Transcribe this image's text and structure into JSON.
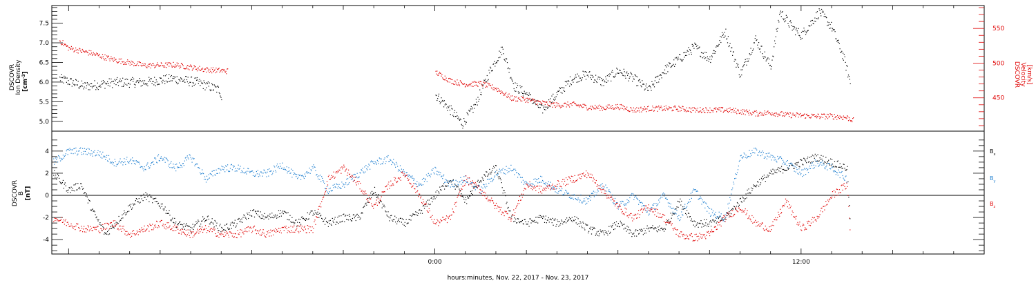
{
  "chart_data": [
    {
      "type": "scatter",
      "panel": "top",
      "ylabel_left": [
        "DSCOVR",
        "Ion Density",
        "[cm",
        "-3",
        "]"
      ],
      "ylabel_right": [
        "DSCOVR",
        "Velocity",
        "[km/s]"
      ],
      "ylim_left": [
        4.75,
        7.95
      ],
      "ylim_right": [
        402,
        583
      ],
      "yticks_left": [
        "5.0",
        "5.5",
        "6.0",
        "6.5",
        "7.0",
        "7.5"
      ],
      "yticks_right": [
        "450",
        "500",
        "550"
      ],
      "series": [
        {
          "color": "#000000",
          "axis": "left",
          "points": [
            [
              -12.3,
              6.1
            ],
            [
              -11.5,
              5.9
            ],
            [
              -10.5,
              6.0
            ],
            [
              -9.5,
              6.0
            ],
            [
              -8.6,
              6.1
            ],
            [
              -7.8,
              6.0
            ],
            [
              -7.05,
              5.8
            ],
            [
              -7.0,
              5.6
            ],
            [
              0.0,
              5.7
            ],
            [
              0.5,
              5.3
            ],
            [
              0.9,
              4.95
            ],
            [
              1.3,
              5.4
            ],
            [
              1.8,
              6.3
            ],
            [
              2.2,
              6.85
            ],
            [
              2.6,
              5.9
            ],
            [
              3.0,
              5.7
            ],
            [
              3.5,
              5.3
            ],
            [
              4.0,
              5.7
            ],
            [
              4.5,
              6.1
            ],
            [
              5.0,
              6.2
            ],
            [
              5.5,
              6.0
            ],
            [
              6.0,
              6.3
            ],
            [
              6.5,
              6.1
            ],
            [
              7.0,
              5.8
            ],
            [
              7.5,
              6.3
            ],
            [
              8.0,
              6.6
            ],
            [
              8.5,
              6.9
            ],
            [
              9.0,
              6.6
            ],
            [
              9.5,
              7.3
            ],
            [
              10.0,
              6.2
            ],
            [
              10.5,
              7.1
            ],
            [
              11.0,
              6.4
            ],
            [
              11.3,
              7.8
            ],
            [
              11.7,
              7.4
            ],
            [
              12.0,
              7.2
            ],
            [
              12.3,
              7.5
            ],
            [
              12.6,
              7.8
            ],
            [
              13.0,
              7.4
            ],
            [
              13.4,
              6.6
            ],
            [
              13.6,
              6.0
            ]
          ]
        },
        {
          "color": "#e00000",
          "axis": "right",
          "points": [
            [
              -12.3,
              533
            ],
            [
              -12.0,
              522
            ],
            [
              -11.3,
              515
            ],
            [
              -10.5,
              505
            ],
            [
              -9.5,
              497
            ],
            [
              -8.5,
              498
            ],
            [
              -7.5,
              491
            ],
            [
              -6.8,
              489
            ],
            [
              0.0,
              488
            ],
            [
              0.5,
              475
            ],
            [
              1.0,
              470
            ],
            [
              1.5,
              471
            ],
            [
              2.0,
              464
            ],
            [
              2.5,
              450
            ],
            [
              3.0,
              448
            ],
            [
              3.5,
              443
            ],
            [
              4.0,
              440
            ],
            [
              4.5,
              441
            ],
            [
              5.0,
              437
            ],
            [
              5.5,
              436
            ],
            [
              6.0,
              438
            ],
            [
              6.5,
              433
            ],
            [
              7.0,
              435
            ],
            [
              7.5,
              435
            ],
            [
              8.0,
              435
            ],
            [
              8.5,
              433
            ],
            [
              9.0,
              433
            ],
            [
              9.5,
              433
            ],
            [
              10.0,
              431
            ],
            [
              10.5,
              428
            ],
            [
              11.0,
              429
            ],
            [
              11.5,
              426
            ],
            [
              12.0,
              425
            ],
            [
              12.5,
              424
            ],
            [
              13.0,
              424
            ],
            [
              13.5,
              422
            ],
            [
              13.7,
              418
            ]
          ]
        }
      ]
    },
    {
      "type": "scatter",
      "panel": "bottom",
      "ylabel_left": [
        "DSCOVR",
        "B",
        "[nT]"
      ],
      "ylim": [
        -5.3,
        5.8
      ],
      "yticks": [
        "-4",
        "-2",
        "0",
        "2",
        "4"
      ],
      "legend": [
        "B",
        "B",
        "B"
      ],
      "legend_sub": [
        "x",
        "y",
        "z"
      ],
      "series": [
        {
          "name": "B",
          "sub": "x",
          "color": "#000000",
          "points": [
            [
              -12.5,
              2.0
            ],
            [
              -12.0,
              0.5
            ],
            [
              -11.6,
              1.0
            ],
            [
              -11.2,
              -1.5
            ],
            [
              -10.8,
              -3.5
            ],
            [
              -10.0,
              -1.0
            ],
            [
              -9.5,
              0.0
            ],
            [
              -8.9,
              -1.0
            ],
            [
              -8.5,
              -2.5
            ],
            [
              -8.0,
              -3.0
            ],
            [
              -7.5,
              -2.0
            ],
            [
              -7.0,
              -3.0
            ],
            [
              -6.5,
              -2.5
            ],
            [
              -6.0,
              -1.5
            ],
            [
              -5.5,
              -2.0
            ],
            [
              -5.0,
              -1.5
            ],
            [
              -4.5,
              -2.5
            ],
            [
              -4.0,
              -1.5
            ],
            [
              -3.5,
              -2.5
            ],
            [
              -3.0,
              -2.0
            ],
            [
              -2.5,
              -2.0
            ],
            [
              -2.0,
              0.5
            ],
            [
              -1.5,
              -2.0
            ],
            [
              -1.0,
              -2.5
            ],
            [
              -0.5,
              -1.5
            ],
            [
              0.0,
              0.0
            ],
            [
              0.5,
              1.5
            ],
            [
              1.0,
              -0.5
            ],
            [
              1.5,
              1.5
            ],
            [
              2.0,
              2.5
            ],
            [
              2.5,
              -2.0
            ],
            [
              3.0,
              -2.5
            ],
            [
              3.5,
              -2.0
            ],
            [
              4.0,
              -2.5
            ],
            [
              4.5,
              -2.0
            ],
            [
              5.0,
              -3.0
            ],
            [
              5.5,
              -3.5
            ],
            [
              6.0,
              -2.5
            ],
            [
              6.5,
              -3.5
            ],
            [
              7.0,
              -3.0
            ],
            [
              7.5,
              -3.0
            ],
            [
              8.0,
              -0.5
            ],
            [
              8.5,
              -2.5
            ],
            [
              9.0,
              -2.5
            ],
            [
              9.5,
              -2.0
            ],
            [
              10.0,
              -0.5
            ],
            [
              10.5,
              1.0
            ],
            [
              11.0,
              2.0
            ],
            [
              11.5,
              2.5
            ],
            [
              12.0,
              3.0
            ],
            [
              12.5,
              3.5
            ],
            [
              13.0,
              3.0
            ],
            [
              13.5,
              2.5
            ],
            [
              13.6,
              -2.5
            ]
          ]
        },
        {
          "name": "B",
          "sub": "y",
          "color": "#1f7fd0",
          "points": [
            [
              -12.5,
              3.0
            ],
            [
              -12.0,
              4.0
            ],
            [
              -11.5,
              4.0
            ],
            [
              -11.0,
              3.8
            ],
            [
              -10.5,
              3.0
            ],
            [
              -10.0,
              3.2
            ],
            [
              -9.5,
              2.5
            ],
            [
              -9.0,
              3.5
            ],
            [
              -8.5,
              2.5
            ],
            [
              -8.0,
              3.5
            ],
            [
              -7.5,
              1.5
            ],
            [
              -7.0,
              2.5
            ],
            [
              -6.5,
              2.5
            ],
            [
              -6.0,
              2.0
            ],
            [
              -5.5,
              2.0
            ],
            [
              -5.0,
              2.8
            ],
            [
              -4.5,
              1.5
            ],
            [
              -4.0,
              2.5
            ],
            [
              -3.5,
              0.5
            ],
            [
              -3.0,
              1.0
            ],
            [
              -2.5,
              2.0
            ],
            [
              -2.0,
              3.0
            ],
            [
              -1.5,
              3.3
            ],
            [
              -1.0,
              2.0
            ],
            [
              -0.5,
              1.0
            ],
            [
              0.0,
              2.3
            ],
            [
              0.5,
              1.0
            ],
            [
              1.0,
              1.5
            ],
            [
              1.5,
              0.5
            ],
            [
              2.0,
              2.0
            ],
            [
              2.5,
              2.5
            ],
            [
              3.0,
              1.0
            ],
            [
              3.5,
              1.5
            ],
            [
              4.0,
              0.5
            ],
            [
              4.5,
              0.0
            ],
            [
              5.0,
              -0.5
            ],
            [
              5.5,
              1.0
            ],
            [
              6.0,
              -1.0
            ],
            [
              6.5,
              0.0
            ],
            [
              7.0,
              -1.5
            ],
            [
              7.5,
              0.0
            ],
            [
              8.0,
              -2.0
            ],
            [
              8.5,
              0.5
            ],
            [
              9.0,
              -1.5
            ],
            [
              9.5,
              -2.0
            ],
            [
              10.0,
              3.5
            ],
            [
              10.5,
              4.0
            ],
            [
              11.0,
              3.5
            ],
            [
              11.5,
              3.0
            ],
            [
              12.0,
              2.0
            ],
            [
              12.5,
              3.0
            ],
            [
              13.0,
              2.5
            ],
            [
              13.5,
              1.5
            ]
          ]
        },
        {
          "name": "B",
          "sub": "z",
          "color": "#e00000",
          "points": [
            [
              -12.5,
              -2.0
            ],
            [
              -12.0,
              -2.5
            ],
            [
              -11.5,
              -3.0
            ],
            [
              -11.0,
              -3.0
            ],
            [
              -10.5,
              -2.5
            ],
            [
              -10.0,
              -3.5
            ],
            [
              -9.5,
              -3.0
            ],
            [
              -9.0,
              -2.5
            ],
            [
              -8.5,
              -3.0
            ],
            [
              -8.0,
              -3.5
            ],
            [
              -7.5,
              -3.0
            ],
            [
              -7.0,
              -3.5
            ],
            [
              -6.5,
              -3.5
            ],
            [
              -6.0,
              -3.0
            ],
            [
              -5.5,
              -3.5
            ],
            [
              -5.0,
              -3.0
            ],
            [
              -4.5,
              -3.0
            ],
            [
              -4.0,
              -3.0
            ],
            [
              -3.5,
              1.5
            ],
            [
              -3.0,
              2.5
            ],
            [
              -2.5,
              1.0
            ],
            [
              -2.0,
              -1.0
            ],
            [
              -1.5,
              1.0
            ],
            [
              -1.0,
              2.0
            ],
            [
              -0.5,
              0.0
            ],
            [
              0.0,
              -2.5
            ],
            [
              0.5,
              -2.0
            ],
            [
              1.0,
              1.5
            ],
            [
              1.5,
              0.5
            ],
            [
              2.0,
              -1.0
            ],
            [
              2.5,
              -2.0
            ],
            [
              3.0,
              1.0
            ],
            [
              3.5,
              0.5
            ],
            [
              4.0,
              1.0
            ],
            [
              4.5,
              1.5
            ],
            [
              5.0,
              2.0
            ],
            [
              5.5,
              0.5
            ],
            [
              6.0,
              -1.0
            ],
            [
              6.5,
              -2.0
            ],
            [
              7.0,
              -1.0
            ],
            [
              7.5,
              -2.0
            ],
            [
              8.0,
              -3.5
            ],
            [
              8.5,
              -3.8
            ],
            [
              9.0,
              -3.5
            ],
            [
              9.5,
              -2.0
            ],
            [
              10.0,
              -1.0
            ],
            [
              10.5,
              -2.5
            ],
            [
              11.0,
              -3.0
            ],
            [
              11.5,
              -0.5
            ],
            [
              12.0,
              -3.0
            ],
            [
              12.5,
              -2.0
            ],
            [
              13.0,
              0.0
            ],
            [
              13.5,
              1.0
            ],
            [
              13.6,
              -3.3
            ]
          ]
        }
      ]
    }
  ],
  "x_axis": {
    "xlim": [
      -12.55,
      18.0
    ],
    "tick_labels": [
      "0:00",
      "12:00"
    ],
    "label": "hours:minutes, Nov. 22, 2017 - Nov. 23, 2017"
  }
}
